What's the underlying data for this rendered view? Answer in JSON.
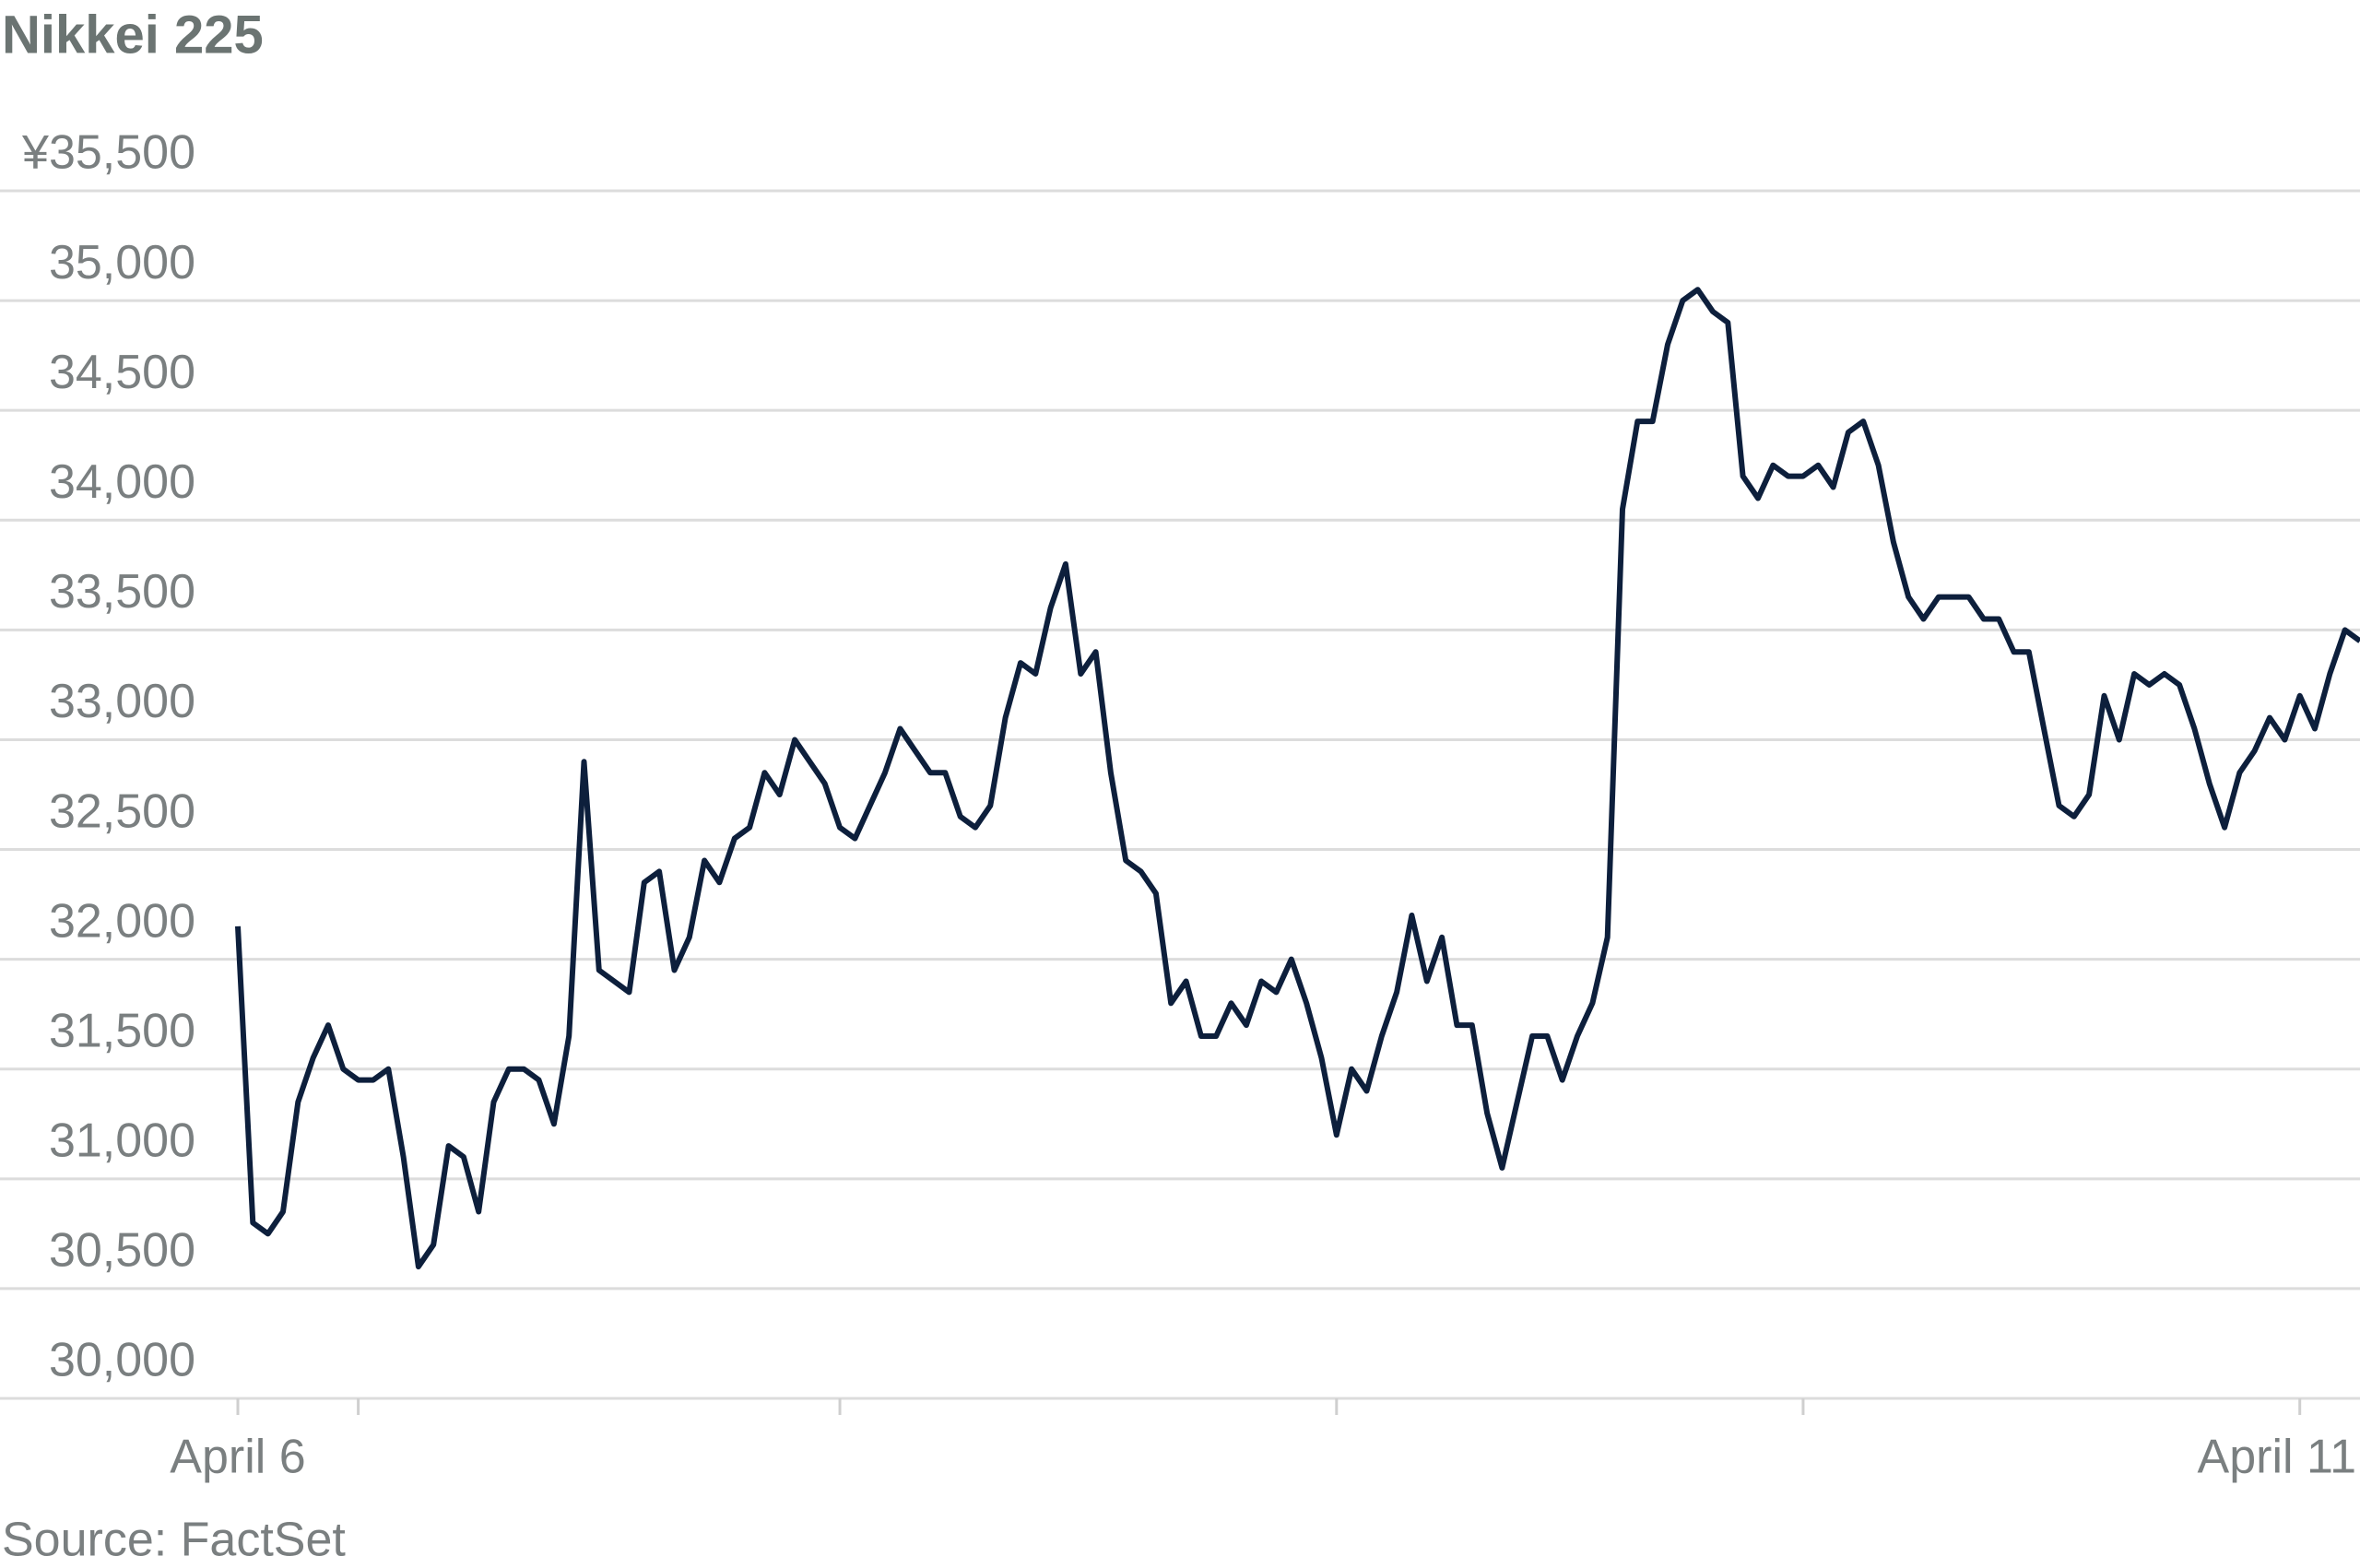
{
  "chart_data": {
    "type": "line",
    "title": "Nikkei 225",
    "source": "Source: FactSet",
    "series": [
      {
        "name": "Nikkei 225",
        "color": "#0d1f3c",
        "values": [
          32150,
          30800,
          30750,
          30850,
          31350,
          31550,
          31700,
          31500,
          31450,
          31450,
          31500,
          31100,
          30600,
          30700,
          31150,
          31100,
          30850,
          31350,
          31500,
          31500,
          31450,
          31250,
          31650,
          32900,
          31950,
          31900,
          31850,
          32350,
          32400,
          31950,
          32100,
          32450,
          32350,
          32550,
          32600,
          32850,
          32750,
          33000,
          32900,
          32800,
          32600,
          32550,
          32700,
          32850,
          33050,
          32950,
          32850,
          32850,
          32650,
          32600,
          32700,
          33100,
          33350,
          33300,
          33600,
          33800,
          33300,
          33400,
          32850,
          32450,
          32400,
          32300,
          31800,
          31900,
          31650,
          31650,
          31800,
          31700,
          31900,
          31850,
          32000,
          31800,
          31550,
          31200,
          31500,
          31400,
          31650,
          31850,
          32200,
          31900,
          32100,
          31700,
          31700,
          31300,
          31050,
          31350,
          31650,
          31650,
          31450,
          31650,
          31800,
          32100,
          34050,
          34450,
          34450,
          34800,
          35000,
          35050,
          34950,
          34900,
          34200,
          34100,
          34250,
          34200,
          34200,
          34250,
          34150,
          34400,
          34450,
          34250,
          33900,
          33650,
          33550,
          33650,
          33650,
          33650,
          33550,
          33550,
          33400,
          33400,
          33050,
          32700,
          32650,
          32750,
          33200,
          33000,
          33300,
          33250,
          33300,
          33250,
          33050,
          32800,
          32600,
          32850,
          32950,
          33100,
          33000,
          33200,
          33050,
          33300,
          33500,
          33450
        ]
      }
    ],
    "xlim": [
      0,
      141
    ],
    "xticks": [
      {
        "value": 0,
        "label": "April 6"
      },
      {
        "value": 8,
        "label": null
      },
      {
        "value": 40,
        "label": null
      },
      {
        "value": 73,
        "label": null
      },
      {
        "value": 104,
        "label": null
      },
      {
        "value": 137,
        "label": "April 11"
      }
    ],
    "ylim": [
      30000,
      35500
    ],
    "yticks": [
      {
        "value": 30000,
        "label": "30,000"
      },
      {
        "value": 30500,
        "label": "30,500"
      },
      {
        "value": 31000,
        "label": "31,000"
      },
      {
        "value": 31500,
        "label": "31,500"
      },
      {
        "value": 32000,
        "label": "32,000"
      },
      {
        "value": 32500,
        "label": "32,500"
      },
      {
        "value": 33000,
        "label": "33,000"
      },
      {
        "value": 33500,
        "label": "33,500"
      },
      {
        "value": 34000,
        "label": "34,000"
      },
      {
        "value": 34500,
        "label": "34,500"
      },
      {
        "value": 35000,
        "label": "35,000"
      },
      {
        "value": 35500,
        "label": "¥35,500"
      }
    ],
    "grid": true
  }
}
